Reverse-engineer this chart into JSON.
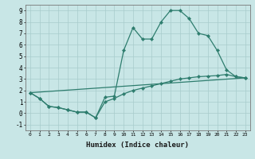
{
  "line1_x": [
    0,
    1,
    2,
    3,
    4,
    5,
    6,
    7,
    8,
    9,
    10,
    11,
    12,
    13,
    14,
    15,
    16,
    17,
    18,
    19,
    20,
    21,
    22,
    23
  ],
  "line1_y": [
    1.8,
    1.3,
    0.6,
    0.5,
    0.3,
    0.1,
    0.1,
    -0.4,
    1.4,
    1.5,
    5.5,
    7.5,
    6.5,
    6.5,
    8.0,
    9.0,
    9.0,
    8.3,
    7.0,
    6.8,
    5.5,
    3.8,
    3.2,
    3.1
  ],
  "line2_x": [
    0,
    1,
    2,
    3,
    4,
    5,
    6,
    7,
    8,
    9,
    10,
    11,
    12,
    13,
    14,
    15,
    16,
    17,
    18,
    19,
    20,
    21,
    22,
    23
  ],
  "line2_y": [
    1.8,
    1.3,
    0.6,
    0.5,
    0.3,
    0.1,
    0.1,
    -0.4,
    1.0,
    1.3,
    1.7,
    2.0,
    2.2,
    2.4,
    2.6,
    2.8,
    3.0,
    3.1,
    3.2,
    3.25,
    3.3,
    3.4,
    3.2,
    3.1
  ],
  "line3_x": [
    0,
    23
  ],
  "line3_y": [
    1.8,
    3.1
  ],
  "color": "#2e7d6e",
  "bg_color": "#c8e6e6",
  "grid_color": "#a8cccc",
  "xlabel": "Humidex (Indice chaleur)",
  "xlim": [
    -0.5,
    23.5
  ],
  "ylim": [
    -1.5,
    9.5
  ],
  "xticks": [
    0,
    1,
    2,
    3,
    4,
    5,
    6,
    7,
    8,
    9,
    10,
    11,
    12,
    13,
    14,
    15,
    16,
    17,
    18,
    19,
    20,
    21,
    22,
    23
  ],
  "yticks": [
    -1,
    0,
    1,
    2,
    3,
    4,
    5,
    6,
    7,
    8,
    9
  ],
  "marker": "D",
  "markersize": 2.2,
  "linewidth": 0.9
}
